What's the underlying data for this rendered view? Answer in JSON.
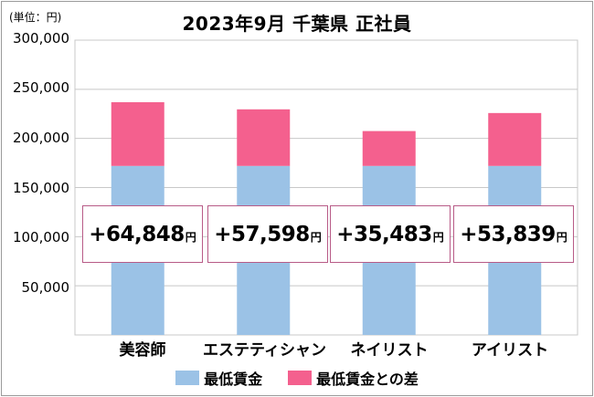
{
  "title": "2023年9月 千葉県 正社員",
  "unit_label": "(単位：円)",
  "colors": {
    "min_wage": "#9bc2e6",
    "diff": "#f4608e",
    "box_border": "#b85b87",
    "grid": "#c8c8c8"
  },
  "legend": {
    "min_wage": "最低賃金",
    "diff": "最低賃金との差"
  },
  "y_ticks": [
    "300,000",
    "250,000",
    "200,000",
    "150,000",
    "100,000",
    "50,000"
  ],
  "chart_data": {
    "type": "bar",
    "stacked": true,
    "categories": [
      "美容師",
      "エステティシャン",
      "ネイリスト",
      "アイリスト"
    ],
    "series": [
      {
        "name": "最低賃金",
        "values": [
          172000,
          172000,
          172000,
          172000
        ]
      },
      {
        "name": "最低賃金との差",
        "values": [
          64848,
          57598,
          35483,
          53839
        ]
      }
    ],
    "title": "2023年9月 千葉県 正社員",
    "ylabel": "(単位：円)",
    "ylim": [
      0,
      300000
    ],
    "grid": true,
    "legend_position": "bottom"
  },
  "diff_labels": [
    {
      "value": "+64,848",
      "unit": "円"
    },
    {
      "value": "+57,598",
      "unit": "円"
    },
    {
      "value": "+35,483",
      "unit": "円"
    },
    {
      "value": "+53,839",
      "unit": "円"
    }
  ]
}
